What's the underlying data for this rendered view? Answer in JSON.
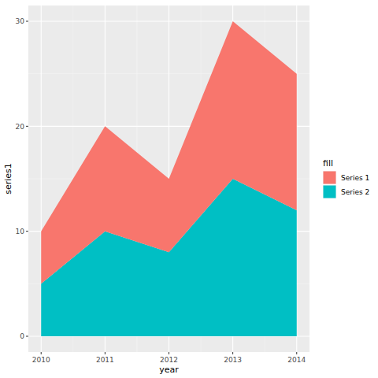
{
  "chart_data": {
    "type": "area",
    "stacked": true,
    "grid": true,
    "legend": "right",
    "x_label": "year",
    "y_label": "series1",
    "legend_title": "fill",
    "x": [
      2010,
      2011,
      2012,
      2013,
      2014
    ],
    "series": [
      {
        "name": "Series 1",
        "color": "#F8766D",
        "values": [
          5,
          10,
          7,
          15,
          13
        ]
      },
      {
        "name": "Series 2",
        "color": "#00BFC4",
        "values": [
          5,
          10,
          8,
          15,
          12
        ]
      }
    ],
    "xlim": [
      2009.8,
      2014.2
    ],
    "xticks": [
      2010,
      2011,
      2012,
      2013,
      2014
    ],
    "ylim": [
      -1.5,
      31.5
    ],
    "yticks": [
      0,
      10,
      20,
      30
    ]
  }
}
